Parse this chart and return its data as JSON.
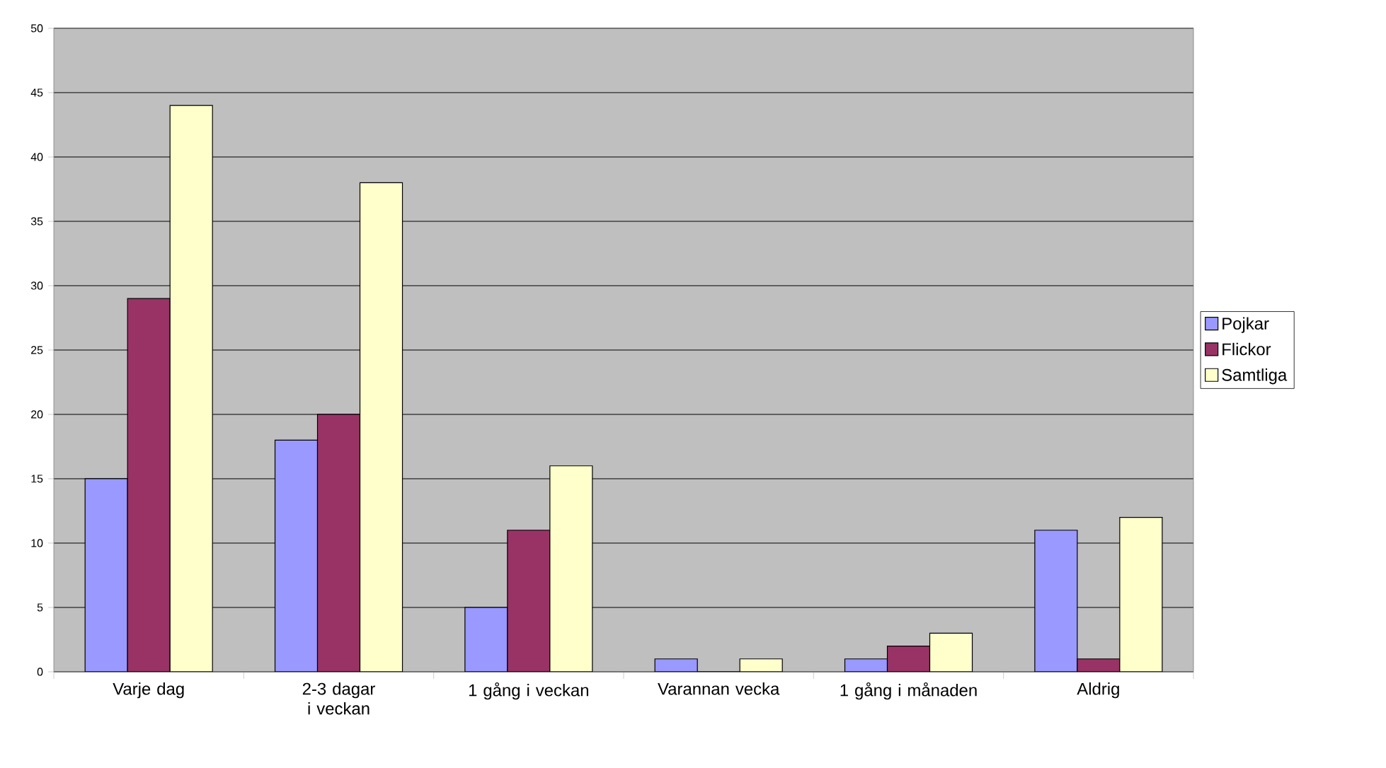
{
  "chart_data": {
    "type": "bar",
    "categories": [
      "Varje dag",
      "2-3 dagar i veckan",
      "1 gång i veckan",
      "Varannan vecka",
      "1 gång i månaden",
      "Aldrig"
    ],
    "series": [
      {
        "name": "Pojkar",
        "color": "#9999ff",
        "values": [
          15,
          18,
          5,
          1,
          1,
          11
        ]
      },
      {
        "name": "Flickor",
        "color": "#993366",
        "values": [
          29,
          20,
          11,
          0,
          2,
          1
        ]
      },
      {
        "name": "Samtliga",
        "color": "#ffffcc",
        "values": [
          44,
          38,
          16,
          1,
          3,
          12
        ]
      }
    ],
    "ylim": [
      0,
      50
    ],
    "yticks": [
      0,
      5,
      10,
      15,
      20,
      25,
      30,
      35,
      40,
      45,
      50
    ],
    "grid": "y",
    "legend": "right"
  }
}
